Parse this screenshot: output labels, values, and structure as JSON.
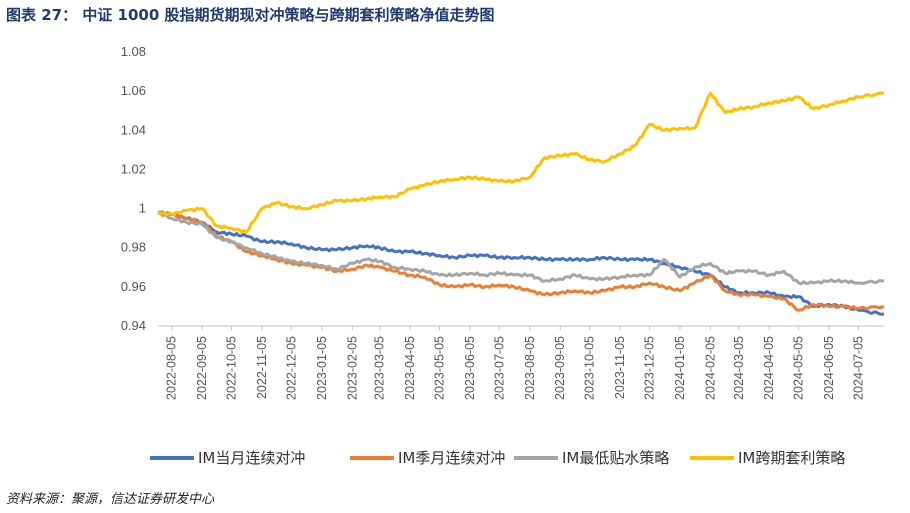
{
  "header": {
    "title": "图表 27： 中证 1000 股指期货期现对冲策略与跨期套利策略净值走势图"
  },
  "footer": {
    "source": "资料来源：聚源，信达证券研发中心"
  },
  "chart_data": {
    "type": "line",
    "title": "图表 27： 中证 1000 股指期货期现对冲策略与跨期套利策略净值走势图",
    "ylim": [
      0.94,
      1.08
    ],
    "yticks": [
      0.94,
      0.96,
      0.98,
      1,
      1.02,
      1.04,
      1.06,
      1.08
    ],
    "ytick_labels": [
      "0.94",
      "0.96",
      "0.98",
      "1",
      "1.02",
      "1.04",
      "1.06",
      "1.08"
    ],
    "xlim": [
      "2022-07-22",
      "2024-07-31"
    ],
    "xticks": [
      "2022-08-05",
      "2022-09-05",
      "2022-10-05",
      "2022-11-05",
      "2022-12-05",
      "2023-01-05",
      "2023-02-05",
      "2023-03-05",
      "2023-04-05",
      "2023-05-05",
      "2023-06-05",
      "2023-07-05",
      "2023-08-05",
      "2023-09-05",
      "2023-10-05",
      "2023-11-05",
      "2023-12-05",
      "2024-01-05",
      "2024-02-05",
      "2024-03-05",
      "2024-04-05",
      "2024-05-05",
      "2024-06-05",
      "2024-07-05"
    ],
    "grid": false,
    "legend": "bottom",
    "series": [
      {
        "name": "IM当月连续对冲",
        "color": "#4472C4",
        "x": [
          "2022-07-22",
          "2022-08-05",
          "2022-08-20",
          "2022-09-05",
          "2022-09-20",
          "2022-10-05",
          "2022-10-20",
          "2022-11-05",
          "2022-11-20",
          "2022-12-05",
          "2022-12-20",
          "2023-01-05",
          "2023-01-20",
          "2023-02-05",
          "2023-02-20",
          "2023-03-05",
          "2023-03-20",
          "2023-04-05",
          "2023-04-20",
          "2023-05-05",
          "2023-05-20",
          "2023-06-05",
          "2023-06-20",
          "2023-07-05",
          "2023-07-20",
          "2023-08-05",
          "2023-08-20",
          "2023-09-05",
          "2023-09-20",
          "2023-10-05",
          "2023-10-20",
          "2023-11-05",
          "2023-11-20",
          "2023-12-05",
          "2023-12-20",
          "2024-01-05",
          "2024-01-20",
          "2024-02-05",
          "2024-02-20",
          "2024-03-05",
          "2024-03-20",
          "2024-04-05",
          "2024-04-20",
          "2024-05-05",
          "2024-05-20",
          "2024-06-05",
          "2024-06-20",
          "2024-07-05",
          "2024-07-31"
        ],
        "values": [
          0.998,
          0.997,
          0.995,
          0.993,
          0.988,
          0.987,
          0.986,
          0.983,
          0.983,
          0.982,
          0.98,
          0.979,
          0.979,
          0.98,
          0.981,
          0.98,
          0.978,
          0.978,
          0.977,
          0.976,
          0.975,
          0.976,
          0.976,
          0.975,
          0.975,
          0.975,
          0.974,
          0.974,
          0.974,
          0.974,
          0.975,
          0.974,
          0.974,
          0.974,
          0.972,
          0.97,
          0.968,
          0.966,
          0.96,
          0.957,
          0.957,
          0.957,
          0.955,
          0.955,
          0.95,
          0.951,
          0.95,
          0.948,
          0.946
        ]
      },
      {
        "name": "IM季月连续对冲",
        "color": "#ED7D31",
        "x": [
          "2022-07-22",
          "2022-08-05",
          "2022-08-20",
          "2022-09-05",
          "2022-09-20",
          "2022-10-05",
          "2022-10-20",
          "2022-11-05",
          "2022-11-20",
          "2022-12-05",
          "2022-12-20",
          "2023-01-05",
          "2023-01-20",
          "2023-02-05",
          "2023-02-20",
          "2023-03-05",
          "2023-03-20",
          "2023-04-05",
          "2023-04-20",
          "2023-05-05",
          "2023-05-20",
          "2023-06-05",
          "2023-06-20",
          "2023-07-05",
          "2023-07-20",
          "2023-08-05",
          "2023-08-20",
          "2023-09-05",
          "2023-09-20",
          "2023-10-05",
          "2023-10-20",
          "2023-11-05",
          "2023-11-20",
          "2023-12-05",
          "2023-12-20",
          "2024-01-05",
          "2024-01-20",
          "2024-02-05",
          "2024-02-20",
          "2024-03-05",
          "2024-03-20",
          "2024-04-05",
          "2024-04-20",
          "2024-05-05",
          "2024-05-20",
          "2024-06-05",
          "2024-06-20",
          "2024-07-05",
          "2024-07-31"
        ],
        "values": [
          0.998,
          0.997,
          0.995,
          0.993,
          0.986,
          0.983,
          0.978,
          0.976,
          0.974,
          0.972,
          0.971,
          0.97,
          0.968,
          0.969,
          0.971,
          0.97,
          0.968,
          0.966,
          0.965,
          0.961,
          0.96,
          0.961,
          0.96,
          0.961,
          0.96,
          0.958,
          0.956,
          0.957,
          0.958,
          0.957,
          0.958,
          0.96,
          0.96,
          0.962,
          0.96,
          0.958,
          0.962,
          0.966,
          0.958,
          0.956,
          0.956,
          0.955,
          0.954,
          0.948,
          0.951,
          0.95,
          0.95,
          0.949,
          0.95
        ]
      },
      {
        "name": "IM最低贴水策略",
        "color": "#A5A5A5",
        "x": [
          "2022-07-22",
          "2022-08-05",
          "2022-08-20",
          "2022-09-05",
          "2022-09-20",
          "2022-10-05",
          "2022-10-20",
          "2022-11-05",
          "2022-11-20",
          "2022-12-05",
          "2022-12-20",
          "2023-01-05",
          "2023-01-20",
          "2023-02-05",
          "2023-02-20",
          "2023-03-05",
          "2023-03-20",
          "2023-04-05",
          "2023-04-20",
          "2023-05-05",
          "2023-05-20",
          "2023-06-05",
          "2023-06-20",
          "2023-07-05",
          "2023-07-20",
          "2023-08-05",
          "2023-08-20",
          "2023-09-05",
          "2023-09-20",
          "2023-10-05",
          "2023-10-20",
          "2023-11-05",
          "2023-11-20",
          "2023-12-05",
          "2023-12-20",
          "2024-01-05",
          "2024-01-20",
          "2024-02-05",
          "2024-02-20",
          "2024-03-05",
          "2024-03-20",
          "2024-04-05",
          "2024-04-20",
          "2024-05-05",
          "2024-05-20",
          "2024-06-05",
          "2024-06-20",
          "2024-07-05",
          "2024-07-31"
        ],
        "values": [
          0.998,
          0.995,
          0.993,
          0.992,
          0.985,
          0.983,
          0.98,
          0.977,
          0.975,
          0.973,
          0.972,
          0.971,
          0.969,
          0.972,
          0.974,
          0.973,
          0.97,
          0.969,
          0.968,
          0.966,
          0.966,
          0.967,
          0.966,
          0.967,
          0.966,
          0.966,
          0.963,
          0.964,
          0.966,
          0.964,
          0.964,
          0.965,
          0.966,
          0.966,
          0.974,
          0.965,
          0.97,
          0.972,
          0.967,
          0.968,
          0.968,
          0.966,
          0.968,
          0.962,
          0.962,
          0.963,
          0.963,
          0.962,
          0.963
        ]
      },
      {
        "name": "IM跨期套利策略",
        "color": "#FFC000",
        "x": [
          "2022-07-22",
          "2022-08-05",
          "2022-08-20",
          "2022-09-05",
          "2022-09-20",
          "2022-10-05",
          "2022-10-20",
          "2022-11-05",
          "2022-11-20",
          "2022-12-05",
          "2022-12-20",
          "2023-01-05",
          "2023-01-20",
          "2023-02-05",
          "2023-02-20",
          "2023-03-05",
          "2023-03-20",
          "2023-04-05",
          "2023-04-20",
          "2023-05-05",
          "2023-05-20",
          "2023-06-05",
          "2023-06-20",
          "2023-07-05",
          "2023-07-20",
          "2023-08-05",
          "2023-08-20",
          "2023-09-05",
          "2023-09-20",
          "2023-10-05",
          "2023-10-20",
          "2023-11-05",
          "2023-11-20",
          "2023-12-05",
          "2023-12-20",
          "2024-01-05",
          "2024-01-20",
          "2024-02-05",
          "2024-02-20",
          "2024-03-05",
          "2024-03-20",
          "2024-04-05",
          "2024-04-20",
          "2024-05-05",
          "2024-05-20",
          "2024-06-05",
          "2024-06-20",
          "2024-07-05",
          "2024-07-31"
        ],
        "values": [
          0.998,
          0.997,
          0.999,
          1.0,
          0.991,
          0.99,
          0.988,
          1.0,
          1.003,
          1.001,
          1.0,
          1.002,
          1.004,
          1.004,
          1.005,
          1.006,
          1.006,
          1.01,
          1.012,
          1.014,
          1.015,
          1.016,
          1.015,
          1.014,
          1.014,
          1.016,
          1.026,
          1.027,
          1.028,
          1.025,
          1.024,
          1.028,
          1.032,
          1.043,
          1.04,
          1.041,
          1.041,
          1.059,
          1.049,
          1.051,
          1.052,
          1.054,
          1.055,
          1.057,
          1.051,
          1.053,
          1.055,
          1.057,
          1.059
        ]
      }
    ]
  }
}
